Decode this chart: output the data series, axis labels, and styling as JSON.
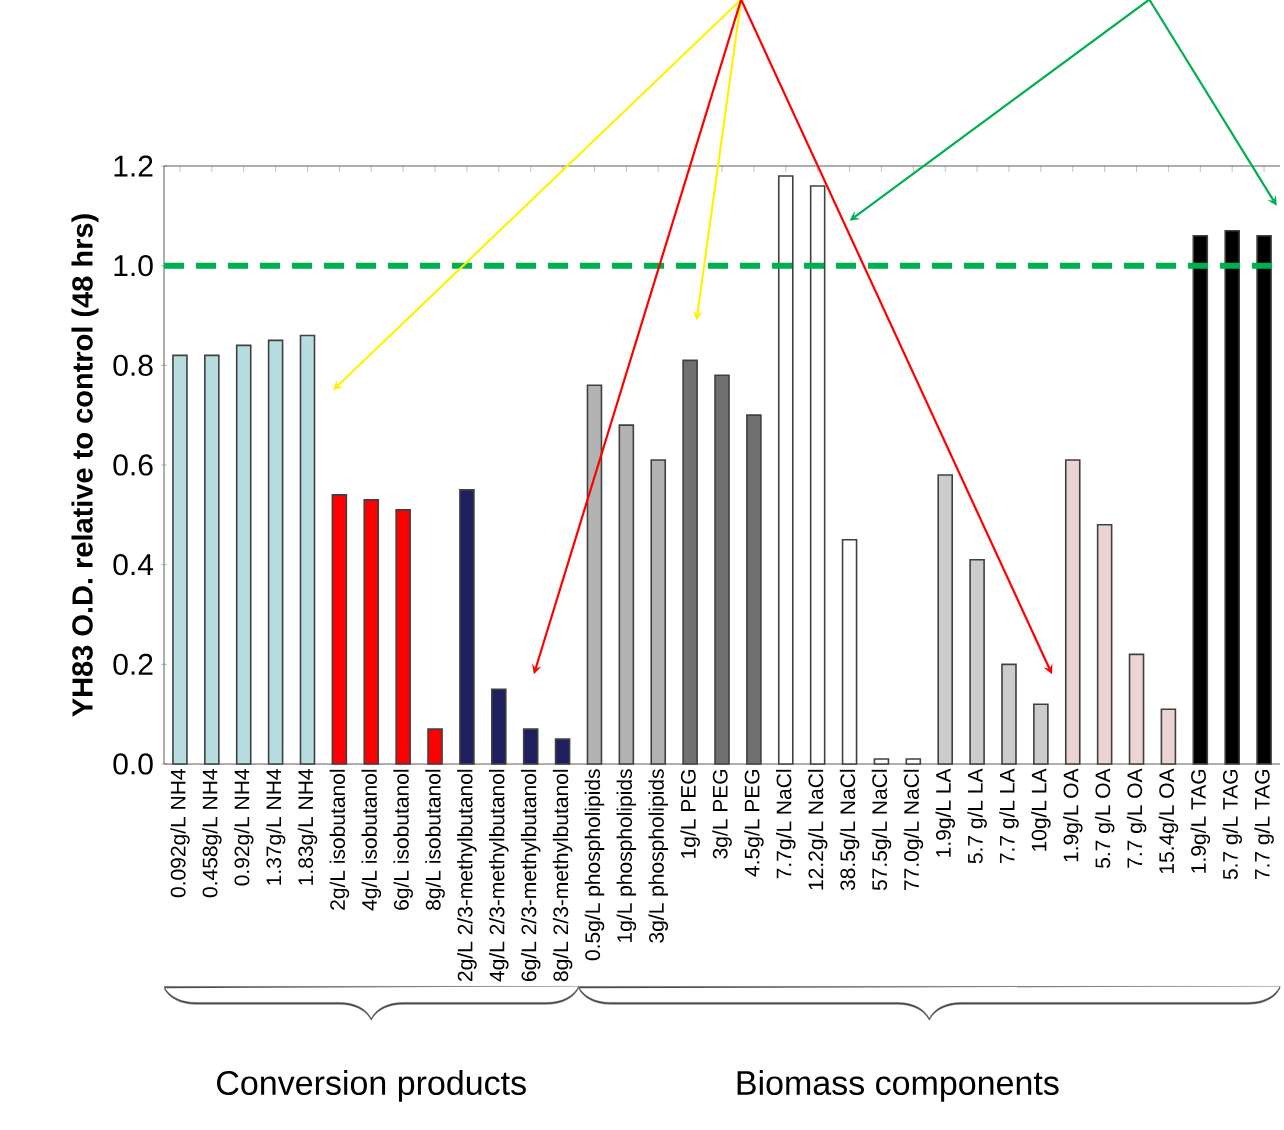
{
  "chart_data": {
    "type": "bar",
    "ylabel": "YH83 O.D. relative to control (48 hrs)",
    "categories": [
      "0.092g/L NH4",
      "0.458g/L NH4",
      "0.92g/L NH4",
      "1.37g/L NH4",
      "1.83g/L NH4",
      "2g/L isobutanol",
      "4g/L isobutanol",
      "6g/L isobutanol",
      "8g/L isobutanol",
      "2g/L 2/3-methylbutanol",
      "4g/L 2/3-methylbutanol",
      "6g/L 2/3-methylbutanol",
      "8g/L 2/3-methylbutanol",
      "0.5g/L phospholipids",
      "1g/L phospholipids",
      "3g/L phospholipids",
      "1g/L PEG",
      "3g/L PEG",
      "4.5g/L PEG",
      "7.7g/L NaCl",
      "12.2g/L NaCl",
      "38.5g/L NaCl",
      "57.5g/L NaCl",
      "77.0g/L NaCl",
      "1.9g/L LA",
      "5.7 g/L LA",
      "7.7 g/L LA",
      "10g/L LA",
      "1.9g/L OA",
      "5.7 g/L OA",
      "7.7 g/L OA",
      "15.4g/L OA",
      "1.9g/L TAG",
      "5.7 g/L TAG",
      "7.7 g/L TAG"
    ],
    "values": [
      0.82,
      0.82,
      0.84,
      0.85,
      0.86,
      0.54,
      0.53,
      0.51,
      0.07,
      0.55,
      0.15,
      0.07,
      0.05,
      0.76,
      0.68,
      0.61,
      0.81,
      0.78,
      0.7,
      1.18,
      1.16,
      0.45,
      0.01,
      0.01,
      0.58,
      0.41,
      0.2,
      0.12,
      0.61,
      0.48,
      0.22,
      0.11,
      1.06,
      1.07,
      1.06
    ],
    "colors": [
      "#b7dde0",
      "#b7dde0",
      "#b7dde0",
      "#b7dde0",
      "#b7dde0",
      "#ff0000",
      "#ff0000",
      "#ff0000",
      "#ff0000",
      "#1f1f5f",
      "#1f1f5f",
      "#1f1f5f",
      "#1f1f5f",
      "#b3b3b3",
      "#b3b3b3",
      "#b3b3b3",
      "#707070",
      "#707070",
      "#707070",
      "#ffffff",
      "#ffffff",
      "#ffffff",
      "#ffffff",
      "#ffffff",
      "#cccccc",
      "#cccccc",
      "#cccccc",
      "#cccccc",
      "#ead4d4",
      "#ead4d4",
      "#ead4d4",
      "#ead4d4",
      "#000000",
      "#000000",
      "#000000"
    ],
    "ylim": [
      0,
      1.2
    ],
    "yticks": [
      {
        "value": 0,
        "label": "0.0"
      },
      {
        "value": 0.2,
        "label": "0.2"
      },
      {
        "value": 0.4,
        "label": "0.4"
      },
      {
        "value": 0.6,
        "label": "0.6"
      },
      {
        "value": 0.8,
        "label": "0.8"
      },
      {
        "value": 1.0,
        "label": "1.0"
      },
      {
        "value": 1.2,
        "label": "1.2"
      }
    ],
    "ref_lines": [
      {
        "axis": "y",
        "value": 1.0,
        "color": "#00b050",
        "line_style": "dashed"
      }
    ],
    "annotations": [
      "Conversion products",
      "Biomass components"
    ]
  }
}
